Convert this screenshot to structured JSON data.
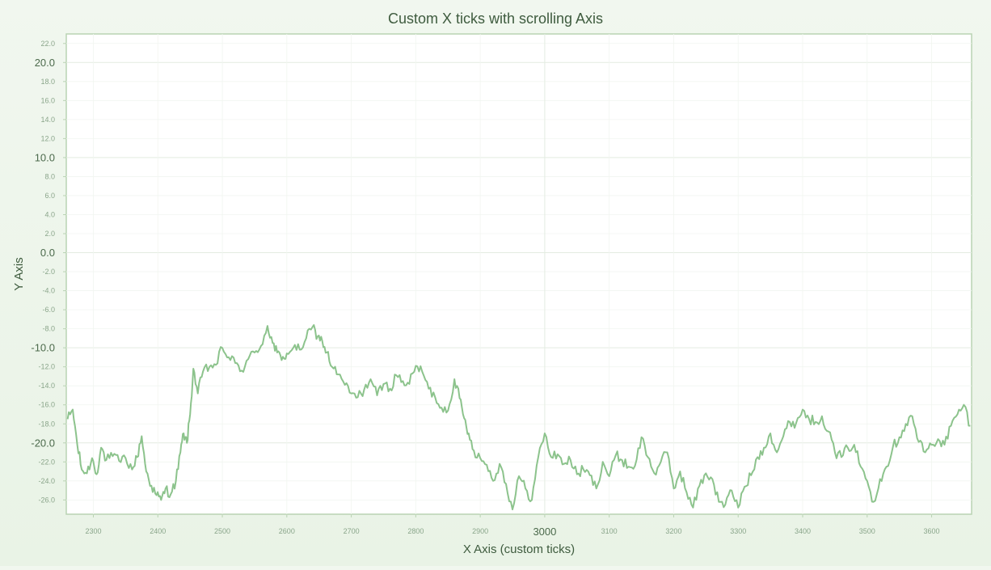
{
  "chart_data": {
    "type": "line",
    "title": "Custom X ticks with scrolling Axis",
    "xlabel": "X Axis (custom ticks)",
    "ylabel": "Y Axis",
    "xlim": [
      2258,
      3662
    ],
    "ylim": [
      -27.5,
      23.0
    ],
    "grid": true,
    "legend": "none",
    "x_ticks": [
      {
        "value": 2300,
        "label": "2300",
        "major": false
      },
      {
        "value": 2400,
        "label": "2400",
        "major": false
      },
      {
        "value": 2500,
        "label": "2500",
        "major": false
      },
      {
        "value": 2600,
        "label": "2600",
        "major": false
      },
      {
        "value": 2700,
        "label": "2700",
        "major": false
      },
      {
        "value": 2800,
        "label": "2800",
        "major": false
      },
      {
        "value": 2900,
        "label": "2900",
        "major": false
      },
      {
        "value": 3000,
        "label": "3000",
        "major": true
      },
      {
        "value": 3100,
        "label": "3100",
        "major": false
      },
      {
        "value": 3200,
        "label": "3200",
        "major": false
      },
      {
        "value": 3300,
        "label": "3300",
        "major": false
      },
      {
        "value": 3400,
        "label": "3400",
        "major": false
      },
      {
        "value": 3500,
        "label": "3500",
        "major": false
      },
      {
        "value": 3600,
        "label": "3600",
        "major": false
      }
    ],
    "y_ticks": [
      {
        "value": 22,
        "label": "22.0",
        "major": false
      },
      {
        "value": 20,
        "label": "20.0",
        "major": true
      },
      {
        "value": 18,
        "label": "18.0",
        "major": false
      },
      {
        "value": 16,
        "label": "16.0",
        "major": false
      },
      {
        "value": 14,
        "label": "14.0",
        "major": false
      },
      {
        "value": 12,
        "label": "12.0",
        "major": false
      },
      {
        "value": 10,
        "label": "10.0",
        "major": true
      },
      {
        "value": 8,
        "label": "8.0",
        "major": false
      },
      {
        "value": 6,
        "label": "6.0",
        "major": false
      },
      {
        "value": 4,
        "label": "4.0",
        "major": false
      },
      {
        "value": 2,
        "label": "2.0",
        "major": false
      },
      {
        "value": 0,
        "label": "0.0",
        "major": true
      },
      {
        "value": -2,
        "label": "-2.0",
        "major": false
      },
      {
        "value": -4,
        "label": "-4.0",
        "major": false
      },
      {
        "value": -6,
        "label": "-6.0",
        "major": false
      },
      {
        "value": -8,
        "label": "-8.0",
        "major": false
      },
      {
        "value": -10,
        "label": "-10.0",
        "major": true
      },
      {
        "value": -12,
        "label": "-12.0",
        "major": false
      },
      {
        "value": -14,
        "label": "-14.0",
        "major": false
      },
      {
        "value": -16,
        "label": "-16.0",
        "major": false
      },
      {
        "value": -18,
        "label": "-18.0",
        "major": false
      },
      {
        "value": -20,
        "label": "-20.0",
        "major": true
      },
      {
        "value": -22,
        "label": "-22.0",
        "major": false
      },
      {
        "value": -24,
        "label": "-24.0",
        "major": false
      },
      {
        "value": -26,
        "label": "-26.0",
        "major": false
      }
    ],
    "series": [
      {
        "color": "#8cc38c",
        "x": [
          2260,
          2268,
          2275,
          2282,
          2290,
          2298,
          2305,
          2312,
          2320,
          2330,
          2340,
          2350,
          2360,
          2368,
          2375,
          2382,
          2390,
          2398,
          2405,
          2412,
          2420,
          2428,
          2435,
          2440,
          2445,
          2450,
          2455,
          2462,
          2470,
          2480,
          2490,
          2500,
          2510,
          2520,
          2530,
          2540,
          2550,
          2560,
          2570,
          2578,
          2585,
          2592,
          2600,
          2610,
          2620,
          2630,
          2640,
          2648,
          2655,
          2662,
          2670,
          2680,
          2690,
          2700,
          2710,
          2720,
          2730,
          2740,
          2750,
          2760,
          2770,
          2780,
          2790,
          2800,
          2810,
          2820,
          2830,
          2840,
          2850,
          2860,
          2868,
          2875,
          2882,
          2890,
          2900,
          2910,
          2920,
          2930,
          2940,
          2950,
          2960,
          2970,
          2980,
          2990,
          3000,
          3010,
          3020,
          3030,
          3040,
          3050,
          3060,
          3070,
          3080,
          3090,
          3100,
          3110,
          3120,
          3130,
          3140,
          3150,
          3160,
          3170,
          3180,
          3190,
          3200,
          3210,
          3220,
          3230,
          3240,
          3250,
          3260,
          3270,
          3280,
          3290,
          3300,
          3310,
          3320,
          3330,
          3340,
          3350,
          3360,
          3370,
          3380,
          3390,
          3400,
          3410,
          3420,
          3430,
          3440,
          3450,
          3460,
          3470,
          3480,
          3490,
          3500,
          3510,
          3520,
          3530,
          3540,
          3550,
          3560,
          3570,
          3580,
          3590,
          3600,
          3610,
          3620,
          3630,
          3640,
          3650,
          3660
        ],
        "y": [
          -17.5,
          -16.5,
          -20.2,
          -22.8,
          -23.2,
          -21.6,
          -23.3,
          -20.5,
          -21.8,
          -21.4,
          -21.9,
          -21.6,
          -22.8,
          -21.5,
          -19.3,
          -23.0,
          -24.5,
          -25.5,
          -26.0,
          -24.8,
          -25.4,
          -24.0,
          -21.0,
          -19.0,
          -20.0,
          -17.0,
          -12.2,
          -14.8,
          -12.5,
          -12.0,
          -11.8,
          -10.0,
          -11.0,
          -11.6,
          -12.4,
          -11.2,
          -10.5,
          -9.8,
          -7.7,
          -9.5,
          -10.5,
          -11.3,
          -10.6,
          -10.0,
          -10.2,
          -9.0,
          -7.8,
          -8.8,
          -9.3,
          -10.5,
          -12.0,
          -12.8,
          -13.9,
          -14.8,
          -15.2,
          -14.4,
          -13.3,
          -15.0,
          -13.8,
          -14.3,
          -12.9,
          -13.5,
          -13.8,
          -11.9,
          -12.5,
          -14.3,
          -15.2,
          -16.3,
          -16.6,
          -13.3,
          -15.3,
          -17.4,
          -19.0,
          -20.8,
          -21.6,
          -22.3,
          -24.0,
          -22.2,
          -24.3,
          -27.0,
          -23.5,
          -24.8,
          -26.0,
          -21.5,
          -19.0,
          -21.5,
          -21.2,
          -22.2,
          -21.8,
          -23.3,
          -22.8,
          -23.4,
          -24.8,
          -22.0,
          -23.5,
          -21.3,
          -21.8,
          -22.5,
          -22.4,
          -19.4,
          -21.5,
          -23.2,
          -22.0,
          -21.0,
          -24.8,
          -23.0,
          -25.2,
          -26.8,
          -24.5,
          -23.2,
          -23.8,
          -26.2,
          -26.5,
          -25.0,
          -26.8,
          -24.6,
          -23.4,
          -21.5,
          -20.5,
          -19.0,
          -21.0,
          -19.3,
          -17.8,
          -17.9,
          -16.5,
          -17.5,
          -17.8,
          -17.2,
          -18.8,
          -21.0,
          -21.5,
          -20.5,
          -20.2,
          -22.5,
          -24.0,
          -26.2,
          -23.8,
          -22.5,
          -20.4,
          -19.4,
          -18.0,
          -17.2,
          -19.9,
          -21.0,
          -20.2,
          -19.6,
          -20.2,
          -18.2,
          -17.0,
          -16.0,
          -18.2
        ]
      }
    ]
  }
}
